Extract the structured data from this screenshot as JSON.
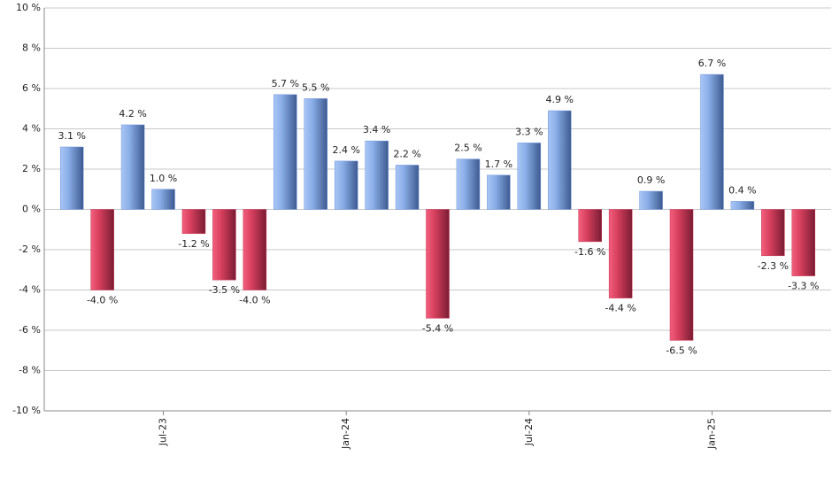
{
  "chart_data": {
    "type": "bar",
    "categories": [
      null,
      null,
      null,
      "Jul-23",
      null,
      null,
      null,
      null,
      null,
      "Jan-24",
      null,
      null,
      null,
      null,
      null,
      "Jul-24",
      null,
      null,
      null,
      null,
      null,
      "Jan-25",
      null,
      null,
      null
    ],
    "values": [
      3.1,
      -4.0,
      4.2,
      1.0,
      -1.2,
      -3.5,
      -4.0,
      5.7,
      5.5,
      2.4,
      3.4,
      2.2,
      -5.4,
      2.5,
      1.7,
      3.3,
      4.9,
      -1.6,
      -4.4,
      0.9,
      -6.5,
      6.7,
      0.4,
      -2.3,
      -3.3
    ],
    "value_labels": [
      "3.1 %",
      "-4.0 %",
      "4.2 %",
      "1.0 %",
      "-1.2 %",
      "-3.5 %",
      "-4.0 %",
      "5.7 %",
      "5.5 %",
      "2.4 %",
      "3.4 %",
      "2.2 %",
      "-5.4 %",
      "2.5 %",
      "1.7 %",
      "3.3 %",
      "4.9 %",
      "-1.6 %",
      "-4.4 %",
      "0.9 %",
      "-6.5 %",
      "6.7 %",
      "0.4 %",
      "-2.3 %",
      "-3.3 %"
    ],
    "positive_color": "#6f95dc",
    "negative_color": "#c8304e",
    "ylim": [
      -10,
      10
    ],
    "yticks": [
      {
        "value": -10,
        "label": "-10 %"
      },
      {
        "value": -8,
        "label": "-8 %"
      },
      {
        "value": -6,
        "label": "-6 %"
      },
      {
        "value": -4,
        "label": "-4 %"
      },
      {
        "value": -2,
        "label": "-2 %"
      },
      {
        "value": 0,
        "label": "0 %"
      },
      {
        "value": 2,
        "label": "2 %"
      },
      {
        "value": 4,
        "label": "4 %"
      },
      {
        "value": 6,
        "label": "6 %"
      },
      {
        "value": 8,
        "label": "8 %"
      },
      {
        "value": 10,
        "label": "10 %"
      }
    ],
    "grid": true
  }
}
